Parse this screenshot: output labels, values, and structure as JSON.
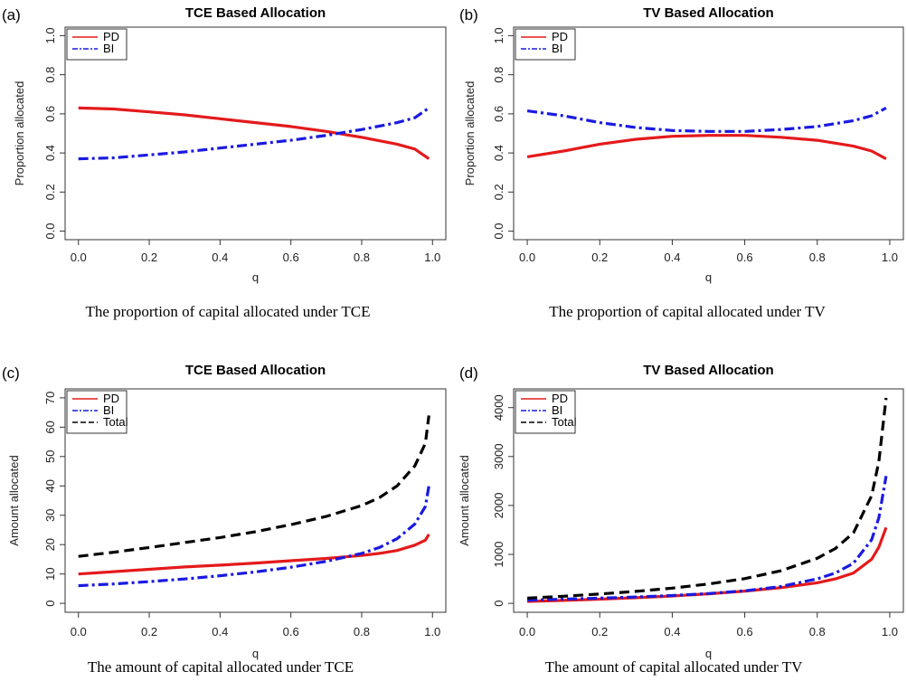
{
  "colors": {
    "PD": "#e41a1c",
    "BI": "#1a1ae0",
    "Total": "#000000"
  },
  "chart_data": [
    {
      "panel_label": "(a)",
      "type": "line",
      "title": "TCE Based Allocation",
      "xlabel": "q",
      "ylabel": "Proportion allocated",
      "xlim": [
        0,
        1
      ],
      "ylim": [
        0,
        1
      ],
      "x_ticks": [
        "0.0",
        "0.2",
        "0.4",
        "0.6",
        "0.8",
        "1.0"
      ],
      "y_ticks": [
        "0.0",
        "0.2",
        "0.4",
        "0.6",
        "0.8",
        "1.0"
      ],
      "legend_position": "top-left",
      "caption": "The proportion of capital allocated under TCE",
      "x": [
        0,
        0.1,
        0.2,
        0.3,
        0.4,
        0.5,
        0.6,
        0.7,
        0.75,
        0.8,
        0.9,
        0.95,
        0.99
      ],
      "series": [
        {
          "name": "PD",
          "style": "solid",
          "values": [
            0.63,
            0.625,
            0.61,
            0.595,
            0.575,
            0.555,
            0.535,
            0.51,
            0.495,
            0.48,
            0.445,
            0.42,
            0.37
          ]
        },
        {
          "name": "BI",
          "style": "dashdot",
          "values": [
            0.37,
            0.375,
            0.39,
            0.405,
            0.425,
            0.445,
            0.465,
            0.49,
            0.505,
            0.52,
            0.555,
            0.58,
            0.63
          ]
        }
      ]
    },
    {
      "panel_label": "(b)",
      "type": "line",
      "title": "TV Based Allocation",
      "xlabel": "q",
      "ylabel": "Proportion allocated",
      "xlim": [
        0,
        1
      ],
      "ylim": [
        0,
        1
      ],
      "x_ticks": [
        "0.0",
        "0.2",
        "0.4",
        "0.6",
        "0.8",
        "1.0"
      ],
      "y_ticks": [
        "0.0",
        "0.2",
        "0.4",
        "0.6",
        "0.8",
        "1.0"
      ],
      "legend_position": "top-left",
      "caption": "The proportion of capital allocated under TV",
      "x": [
        0,
        0.1,
        0.2,
        0.3,
        0.4,
        0.5,
        0.6,
        0.7,
        0.8,
        0.9,
        0.95,
        0.99
      ],
      "series": [
        {
          "name": "PD",
          "style": "solid",
          "values": [
            0.38,
            0.41,
            0.445,
            0.47,
            0.485,
            0.49,
            0.49,
            0.48,
            0.465,
            0.435,
            0.41,
            0.37
          ]
        },
        {
          "name": "BI",
          "style": "dashdot",
          "values": [
            0.615,
            0.59,
            0.555,
            0.53,
            0.515,
            0.51,
            0.51,
            0.52,
            0.535,
            0.565,
            0.59,
            0.63
          ]
        }
      ]
    },
    {
      "panel_label": "(c)",
      "type": "line",
      "title": "TCE Based Allocation",
      "xlabel": "q",
      "ylabel": "Amount allocated",
      "xlim": [
        0,
        1
      ],
      "ylim": [
        0,
        70
      ],
      "x_ticks": [
        "0.0",
        "0.2",
        "0.4",
        "0.6",
        "0.8",
        "1.0"
      ],
      "y_ticks": [
        "0",
        "10",
        "20",
        "30",
        "40",
        "50",
        "60",
        "70"
      ],
      "legend_position": "top-left",
      "caption": "The amount of capital allocated under TCE",
      "x": [
        0,
        0.1,
        0.2,
        0.3,
        0.4,
        0.5,
        0.6,
        0.7,
        0.8,
        0.85,
        0.9,
        0.95,
        0.98,
        0.99
      ],
      "series": [
        {
          "name": "PD",
          "style": "solid",
          "values": [
            10,
            10.8,
            11.6,
            12.4,
            13,
            13.7,
            14.5,
            15.3,
            16.3,
            17,
            18,
            19.8,
            21.5,
            23.5
          ]
        },
        {
          "name": "BI",
          "style": "dashdot",
          "values": [
            6,
            6.6,
            7.4,
            8.3,
            9.4,
            10.7,
            12.3,
            14.3,
            17,
            19,
            22,
            27,
            33,
            40
          ]
        },
        {
          "name": "Total",
          "style": "dashed",
          "values": [
            16,
            17.4,
            19,
            20.7,
            22.4,
            24.4,
            26.8,
            29.6,
            33.3,
            36,
            40,
            46.8,
            54.5,
            64
          ]
        }
      ]
    },
    {
      "panel_label": "(d)",
      "type": "line",
      "title": "TV Based Allocation",
      "xlabel": "q",
      "ylabel": "Amount allocated",
      "xlim": [
        0,
        1
      ],
      "ylim": [
        0,
        4200
      ],
      "x_ticks": [
        "0.0",
        "0.2",
        "0.4",
        "0.6",
        "0.8",
        "1.0"
      ],
      "y_ticks": [
        "0",
        "1000",
        "2000",
        "3000",
        "4000"
      ],
      "legend_position": "top-left",
      "caption": "The amount of capital allocated under TV",
      "x": [
        0,
        0.1,
        0.2,
        0.3,
        0.4,
        0.5,
        0.6,
        0.7,
        0.8,
        0.85,
        0.9,
        0.95,
        0.97,
        0.99
      ],
      "series": [
        {
          "name": "PD",
          "style": "solid",
          "values": [
            40,
            60,
            85,
            115,
            150,
            195,
            250,
            320,
            420,
            500,
            620,
            900,
            1150,
            1550
          ]
        },
        {
          "name": "BI",
          "style": "dashdot",
          "values": [
            65,
            85,
            105,
            130,
            160,
            200,
            255,
            345,
            500,
            620,
            820,
            1300,
            1750,
            2600
          ]
        },
        {
          "name": "Total",
          "style": "dashed",
          "values": [
            105,
            145,
            190,
            245,
            310,
            395,
            505,
            665,
            920,
            1120,
            1440,
            2200,
            2900,
            4200
          ]
        }
      ]
    }
  ]
}
